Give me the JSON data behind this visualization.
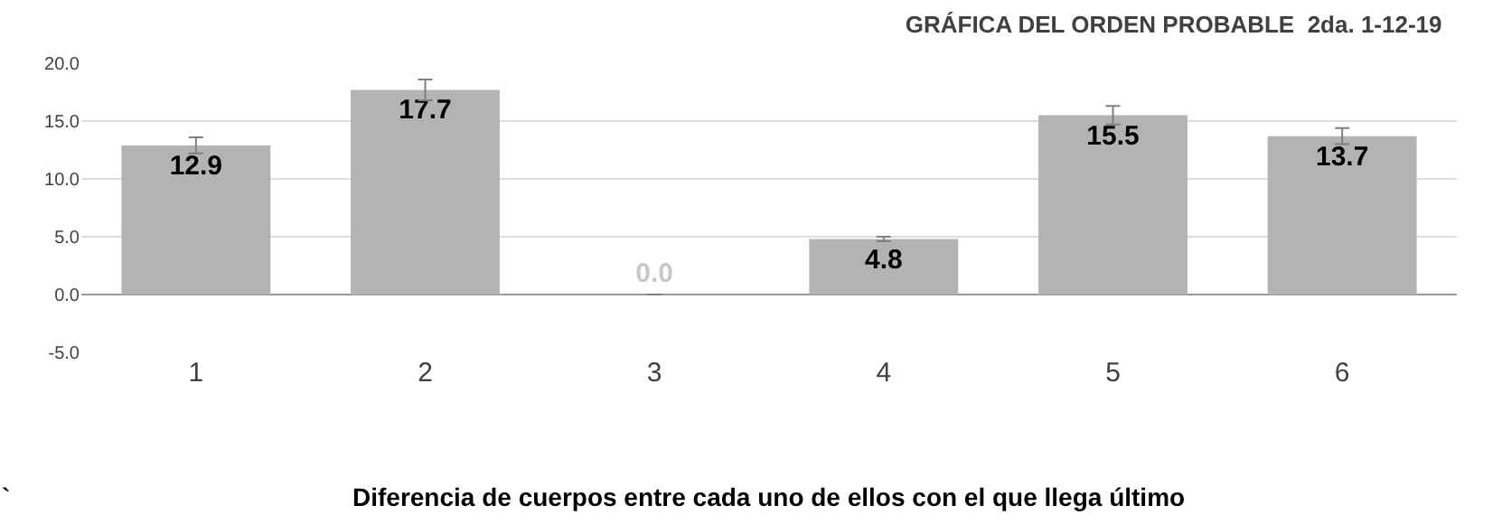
{
  "chart_data": {
    "type": "bar",
    "title": "GRÁFICA DEL ORDEN PROBABLE  2da. 1-12-19",
    "categories": [
      "1",
      "2",
      "3",
      "4",
      "5",
      "6"
    ],
    "values": [
      12.9,
      17.7,
      0.0,
      4.8,
      15.5,
      13.7
    ],
    "errors": [
      0.7,
      0.9,
      null,
      0.2,
      0.8,
      0.7
    ],
    "color": "#b3b3b3",
    "value_labels": [
      "12.9",
      "17.7",
      "0.0",
      "4.8",
      "15.5",
      "13.7"
    ],
    "ylim": [
      -5,
      20
    ],
    "yticks": [
      {
        "value": -5,
        "label": "-5.0"
      },
      {
        "value": 0,
        "label": "0.0"
      },
      {
        "value": 5,
        "label": "5.0"
      },
      {
        "value": 10,
        "label": "10.0"
      },
      {
        "value": 15,
        "label": "15.0"
      },
      {
        "value": 20,
        "label": "20.0"
      }
    ],
    "grid": "y",
    "annotations": [
      "`",
      "Diferencia de cuerpos entre cada uno de ellos con el que llega último"
    ]
  }
}
